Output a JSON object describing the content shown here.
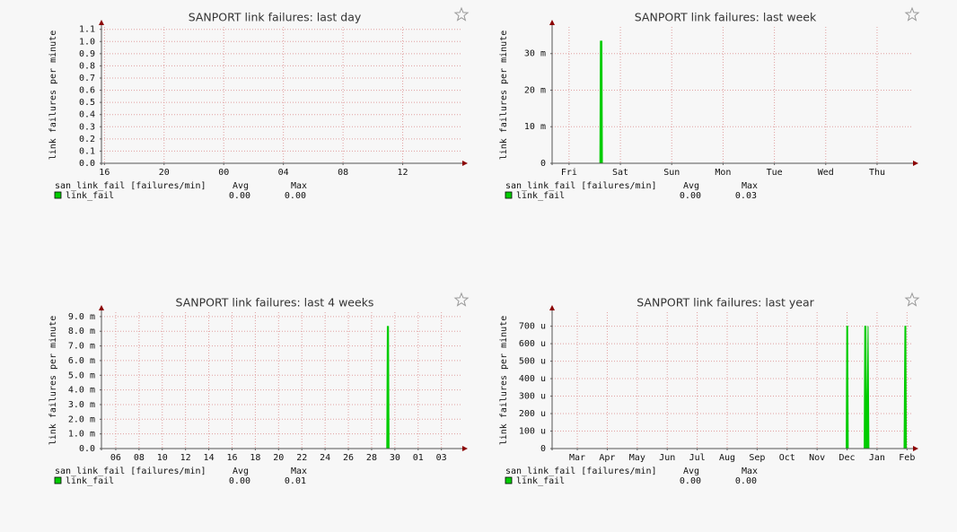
{
  "chart_data": [
    {
      "type": "line",
      "title": "SANPORT link failures: last day",
      "ylabel": "link failures per minute",
      "xlim": [
        15.8,
        40
      ],
      "xticks": [
        16,
        20,
        {
          "value": 24,
          "label": "00"
        },
        {
          "value": 28,
          "label": "04"
        },
        {
          "value": 32,
          "label": "08"
        },
        {
          "value": 36,
          "label": "12"
        }
      ],
      "ylim": [
        0,
        1.12
      ],
      "yticks": [
        {
          "value": 0,
          "label": "0.0"
        },
        0.1,
        0.2,
        0.3,
        0.4,
        0.5,
        0.6,
        0.7,
        0.8,
        0.9,
        {
          "value": 1,
          "label": "1.0"
        },
        1.1
      ],
      "grid": true,
      "legend_title": "san_link_fail [failures/min]",
      "legend_columns": [
        "Avg",
        "Max"
      ],
      "series": [
        {
          "name": "link_fail",
          "color": "#00cc00",
          "x": [
            15.8,
            40
          ],
          "values": [
            0,
            0
          ],
          "avg": "0.00",
          "max": "0.00"
        }
      ]
    },
    {
      "type": "line",
      "title": "SANPORT link failures: last week",
      "ylabel": "link failures per minute",
      "xlim": [
        -0.33,
        6.7
      ],
      "xticks": [
        {
          "value": 0,
          "label": "Fri"
        },
        {
          "value": 1,
          "label": "Sat"
        },
        {
          "value": 2,
          "label": "Sun"
        },
        {
          "value": 3,
          "label": "Mon"
        },
        {
          "value": 4,
          "label": "Tue"
        },
        {
          "value": 5,
          "label": "Wed"
        },
        {
          "value": 6,
          "label": "Thu"
        }
      ],
      "ylim": [
        0,
        0.0373
      ],
      "yticks": [
        0,
        {
          "value": 0.01,
          "label": "10 m"
        },
        {
          "value": 0.02,
          "label": "20 m"
        },
        {
          "value": 0.03,
          "label": "30 m"
        }
      ],
      "grid": true,
      "legend_title": "san_link_fail [failures/min]",
      "legend_columns": [
        "Avg",
        "Max"
      ],
      "series": [
        {
          "name": "link_fail",
          "color": "#00cc00",
          "x": [
            -0.33,
            0.6,
            0.61,
            0.64,
            0.65,
            6.7
          ],
          "values": [
            0,
            0,
            0.0334,
            0.0334,
            0,
            0
          ],
          "avg": "0.00",
          "max": "0.03"
        }
      ]
    },
    {
      "type": "line",
      "title": "SANPORT link failures: last 4 weeks",
      "ylabel": "link failures per minute",
      "xlim": [
        4.77,
        35.8
      ],
      "xticks": [
        {
          "value": 6,
          "label": "06"
        },
        {
          "value": 8,
          "label": "08"
        },
        10,
        12,
        14,
        16,
        18,
        20,
        22,
        24,
        26,
        28,
        30,
        {
          "value": 32,
          "label": "01"
        },
        {
          "value": 34,
          "label": "03"
        }
      ],
      "ylim": [
        0,
        0.0093
      ],
      "yticks": [
        {
          "value": 0,
          "label": "0.0"
        },
        {
          "value": 0.001,
          "label": "1.0 m"
        },
        {
          "value": 0.002,
          "label": "2.0 m"
        },
        {
          "value": 0.003,
          "label": "3.0 m"
        },
        {
          "value": 0.004,
          "label": "4.0 m"
        },
        {
          "value": 0.005,
          "label": "5.0 m"
        },
        {
          "value": 0.006,
          "label": "6.0 m"
        },
        {
          "value": 0.007,
          "label": "7.0 m"
        },
        {
          "value": 0.008,
          "label": "8.0 m"
        },
        {
          "value": 0.009,
          "label": "9.0 m"
        }
      ],
      "grid": true,
      "legend_title": "san_link_fail [failures/min]",
      "legend_columns": [
        "Avg",
        "Max"
      ],
      "series": [
        {
          "name": "link_fail",
          "color": "#00cc00",
          "x": [
            4.77,
            29.3,
            29.35,
            29.45,
            29.5,
            35.8
          ],
          "values": [
            0,
            0,
            0.00833,
            0.00833,
            0,
            0
          ],
          "avg": "0.00",
          "max": "0.01"
        }
      ]
    },
    {
      "type": "line",
      "title": "SANPORT link failures: last year",
      "ylabel": "link failures per minute",
      "xlim": [
        -0.84,
        11.2
      ],
      "xticks": [
        {
          "value": 0,
          "label": "Mar"
        },
        {
          "value": 1,
          "label": "Apr"
        },
        {
          "value": 2,
          "label": "May"
        },
        {
          "value": 3,
          "label": "Jun"
        },
        {
          "value": 4,
          "label": "Jul"
        },
        {
          "value": 5,
          "label": "Aug"
        },
        {
          "value": 6,
          "label": "Sep"
        },
        {
          "value": 7,
          "label": "Oct"
        },
        {
          "value": 8,
          "label": "Nov"
        },
        {
          "value": 9,
          "label": "Dec"
        },
        {
          "value": 10,
          "label": "Jan"
        },
        {
          "value": 11,
          "label": "Feb"
        }
      ],
      "ylim": [
        0,
        0.00078
      ],
      "yticks": [
        0,
        {
          "value": 0.0001,
          "label": "100 u"
        },
        {
          "value": 0.0002,
          "label": "200 u"
        },
        {
          "value": 0.0003,
          "label": "300 u"
        },
        {
          "value": 0.0004,
          "label": "400 u"
        },
        {
          "value": 0.0005,
          "label": "500 u"
        },
        {
          "value": 0.0006,
          "label": "600 u"
        },
        {
          "value": 0.0007,
          "label": "700 u"
        }
      ],
      "grid": true,
      "legend_title": "san_link_fail [failures/min]",
      "legend_columns": [
        "Avg",
        "Max"
      ],
      "series": [
        {
          "name": "link_fail",
          "color": "#00cc00",
          "x": [
            -0.84,
            8.97,
            8.99,
            9.02,
            9.04,
            9.57,
            9.59,
            9.63,
            9.66,
            9.7,
            9.73,
            10.9,
            10.93,
            10.96,
            10.98,
            11.2
          ],
          "values": [
            0,
            0,
            0.0007,
            0.0007,
            0,
            0,
            0.0007,
            0.0007,
            0,
            0.0007,
            0,
            0,
            0.0007,
            0.0007,
            0,
            0
          ],
          "avg": "0.00",
          "max": "0.00"
        }
      ]
    }
  ]
}
